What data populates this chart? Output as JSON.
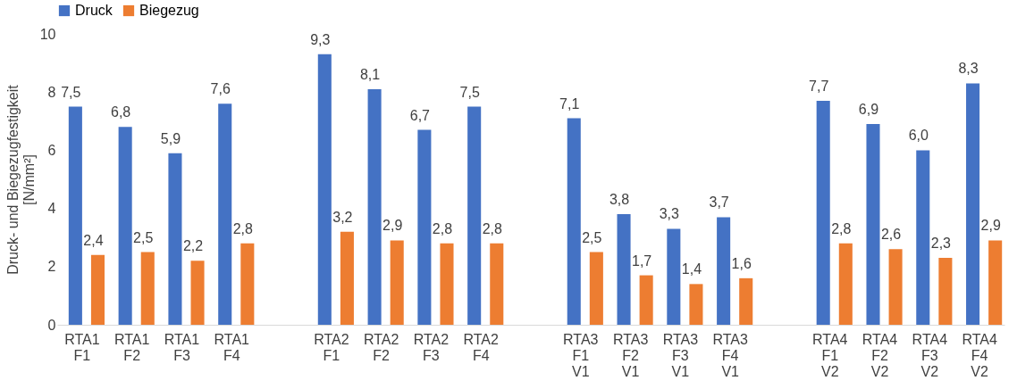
{
  "chart_data": {
    "type": "bar",
    "ylabel": "Druck- und Biegezugfestigkeit\n[N/mm²]",
    "categories": [
      "RTA1\nF1",
      "RTA1\nF2",
      "RTA1\nF3",
      "RTA1\nF4",
      null,
      "RTA2\nF1",
      "RTA2\nF2",
      "RTA2\nF3",
      "RTA2\nF4",
      null,
      "RTA3\nF1\nV1",
      "RTA3\nF2\nV1",
      "RTA3\nF3\nV1",
      "RTA3\nF4\nV1",
      null,
      "RTA4\nF1\nV2",
      "RTA4\nF2\nV2",
      "RTA4\nF3\nV2",
      "RTA4\nF4\nV2"
    ],
    "series": [
      {
        "name": "Druck",
        "color": "#4472c4",
        "values": [
          7.5,
          6.8,
          5.9,
          7.6,
          null,
          9.3,
          8.1,
          6.7,
          7.5,
          null,
          7.1,
          3.8,
          3.3,
          3.7,
          null,
          7.7,
          6.9,
          6.0,
          8.3
        ],
        "value_labels": [
          "7,5",
          "6,8",
          "5,9",
          "7,6",
          null,
          "9,3",
          "8,1",
          "6,7",
          "7,5",
          null,
          "7,1",
          "3,8",
          "3,3",
          "3,7",
          null,
          "7,7",
          "6,9",
          "6,0",
          "8,3"
        ]
      },
      {
        "name": "Biegezug",
        "color": "#ed7d31",
        "values": [
          2.4,
          2.5,
          2.2,
          2.8,
          null,
          3.2,
          2.9,
          2.8,
          2.8,
          null,
          2.5,
          1.7,
          1.4,
          1.6,
          null,
          2.8,
          2.6,
          2.3,
          2.9
        ],
        "value_labels": [
          "2,4",
          "2,5",
          "2,2",
          "2,8",
          null,
          "3,2",
          "2,9",
          "2,8",
          "2,8",
          null,
          "2,5",
          "1,7",
          "1,4",
          "1,6",
          null,
          "2,8",
          "2,6",
          "2,3",
          "2,9"
        ]
      }
    ],
    "ylim": [
      0,
      10
    ],
    "yticks": [
      0,
      2,
      4,
      6,
      8,
      10
    ],
    "grid": false,
    "legend": "top"
  }
}
